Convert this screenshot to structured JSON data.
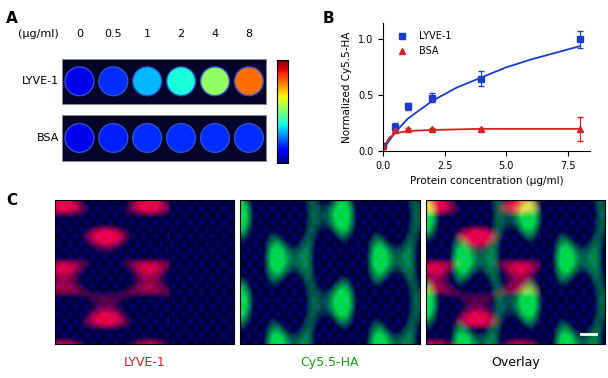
{
  "panel_a": {
    "label": "A",
    "unit": "(µg/ml)",
    "concentrations": [
      0,
      0.5,
      1,
      2,
      4,
      8
    ],
    "color_range": [
      0,
      1
    ],
    "rows": [
      {
        "name": "LYVE-1",
        "intensity": [
          0.02,
          0.12,
          0.3,
          0.4,
          0.6,
          0.95
        ]
      },
      {
        "name": "BSA",
        "intensity": [
          0.02,
          0.1,
          0.12,
          0.12,
          0.12,
          0.12
        ]
      }
    ]
  },
  "chart_data": {
    "label": "B",
    "type": "scatter",
    "x_label": "Protein concentration (µg/ml)",
    "y_label": "Normalized Cy5.5-HA",
    "xlim": [
      0,
      8.4
    ],
    "ylim": [
      0,
      1.15
    ],
    "xticks": [
      {
        "value": 0,
        "label": "0.0"
      },
      {
        "value": 2.5,
        "label": "2.5"
      },
      {
        "value": 5,
        "label": "5.0"
      },
      {
        "value": 7.5,
        "label": "7.5"
      }
    ],
    "yticks": [
      {
        "value": 0,
        "label": "0.0"
      },
      {
        "value": 0.5,
        "label": "0.5"
      },
      {
        "value": 1,
        "label": "1.0"
      }
    ],
    "legend": "upper left",
    "series": [
      {
        "name": "LYVE-1",
        "color": "#1a3ccc",
        "marker": "square",
        "x": [
          0,
          0.5,
          1,
          2,
          4,
          8
        ],
        "values": [
          0.05,
          0.22,
          0.4,
          0.48,
          0.65,
          1.0
        ],
        "errors": [
          0.02,
          0.03,
          0.03,
          0.04,
          0.07,
          0.08
        ],
        "fit": {
          "x": [
            0,
            0.5,
            1,
            2,
            3,
            4,
            5,
            6,
            7,
            8
          ],
          "values": [
            0.02,
            0.17,
            0.29,
            0.45,
            0.57,
            0.66,
            0.75,
            0.82,
            0.88,
            0.94
          ]
        }
      },
      {
        "name": "BSA",
        "color": "#d42020",
        "marker": "triangle",
        "x": [
          0,
          0.5,
          1,
          2,
          4,
          8
        ],
        "values": [
          0.05,
          0.19,
          0.2,
          0.2,
          0.2,
          0.2
        ],
        "errors": [
          0.01,
          0.01,
          0.01,
          0.01,
          0.01,
          0.11
        ],
        "fit": {
          "x": [
            0,
            0.25,
            0.5,
            1,
            2,
            4,
            8
          ],
          "values": [
            0.02,
            0.12,
            0.16,
            0.18,
            0.19,
            0.2,
            0.2
          ]
        }
      }
    ]
  },
  "panel_c": {
    "label": "C",
    "images": [
      {
        "name": "LYVE-1",
        "color": "#d42020"
      },
      {
        "name": "Cy5.5-HA",
        "color": "#1a9a1a"
      },
      {
        "name": "Overlay",
        "color": "#000000"
      }
    ]
  }
}
